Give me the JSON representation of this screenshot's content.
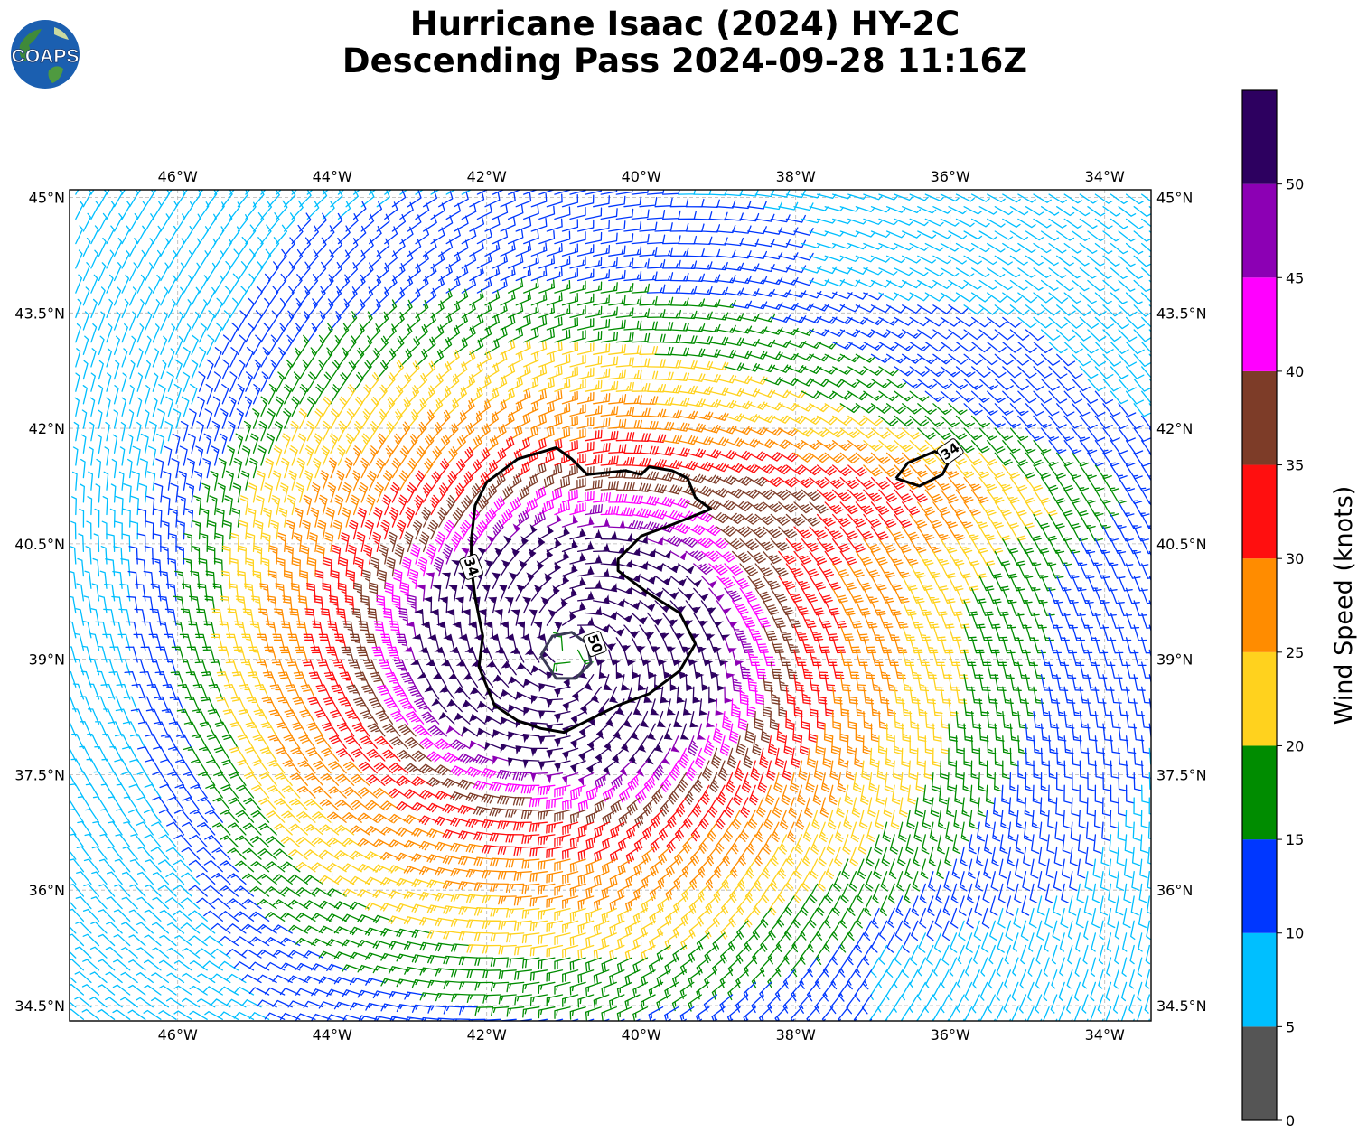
{
  "title": {
    "line1": "Hurricane Isaac (2024) HY-2C",
    "line2": "Descending Pass 2024-09-28 11:16Z"
  },
  "logo": {
    "text": "COAPS"
  },
  "map": {
    "lon_range": [
      -47.4,
      -33.4
    ],
    "lat_range": [
      34.3,
      45.1
    ],
    "lon_ticks": [
      {
        "value": -46,
        "label": "46°W"
      },
      {
        "value": -44,
        "label": "44°W"
      },
      {
        "value": -42,
        "label": "42°W"
      },
      {
        "value": -40,
        "label": "40°W"
      },
      {
        "value": -38,
        "label": "38°W"
      },
      {
        "value": -36,
        "label": "36°W"
      },
      {
        "value": -34,
        "label": "34°W"
      }
    ],
    "lat_ticks": [
      {
        "value": 45,
        "label": "45°N"
      },
      {
        "value": 43.5,
        "label": "43.5°N"
      },
      {
        "value": 42,
        "label": "42°N"
      },
      {
        "value": 40.5,
        "label": "40.5°N"
      },
      {
        "value": 39,
        "label": "39°N"
      },
      {
        "value": 37.5,
        "label": "37.5°N"
      },
      {
        "value": 36,
        "label": "36°N"
      },
      {
        "value": 34.5,
        "label": "34.5°N"
      }
    ],
    "gridlines": true,
    "storm_center": {
      "lon": -40.9,
      "lat": 39.1
    },
    "contours": [
      {
        "label": "34",
        "label_at": {
          "lon": -42.2,
          "lat": 40.2
        },
        "points": [
          [
            -42.2,
            40.55
          ],
          [
            -42.15,
            41.0
          ],
          [
            -42.0,
            41.3
          ],
          [
            -41.6,
            41.6
          ],
          [
            -41.1,
            41.75
          ],
          [
            -40.9,
            41.6
          ],
          [
            -40.7,
            41.4
          ],
          [
            -40.2,
            41.45
          ],
          [
            -40.0,
            41.4
          ],
          [
            -39.9,
            41.5
          ],
          [
            -39.6,
            41.45
          ],
          [
            -39.4,
            41.35
          ],
          [
            -39.3,
            41.1
          ],
          [
            -39.1,
            40.95
          ],
          [
            -39.6,
            40.75
          ],
          [
            -40.0,
            40.6
          ],
          [
            -40.3,
            40.3
          ],
          [
            -40.3,
            40.15
          ],
          [
            -40.1,
            40.0
          ],
          [
            -39.9,
            39.85
          ],
          [
            -39.5,
            39.6
          ],
          [
            -39.3,
            39.2
          ],
          [
            -39.5,
            38.85
          ],
          [
            -39.9,
            38.55
          ],
          [
            -40.3,
            38.4
          ],
          [
            -40.6,
            38.25
          ],
          [
            -41.0,
            38.05
          ],
          [
            -41.3,
            38.1
          ],
          [
            -41.6,
            38.2
          ],
          [
            -41.9,
            38.4
          ],
          [
            -42.1,
            38.9
          ],
          [
            -42.05,
            39.3
          ],
          [
            -42.15,
            39.8
          ],
          [
            -42.2,
            40.2
          ],
          [
            -42.2,
            40.55
          ]
        ]
      },
      {
        "label": "34",
        "label_at": {
          "lon": -36.0,
          "lat": 41.7
        },
        "points": [
          [
            -36.7,
            41.35
          ],
          [
            -36.55,
            41.55
          ],
          [
            -36.2,
            41.7
          ],
          [
            -36.0,
            41.6
          ],
          [
            -36.1,
            41.4
          ],
          [
            -36.4,
            41.25
          ],
          [
            -36.7,
            41.35
          ]
        ]
      },
      {
        "label": "50",
        "label_at": {
          "lon": -40.6,
          "lat": 39.2
        },
        "points": [
          [
            -41.3,
            39.05
          ],
          [
            -41.15,
            39.3
          ],
          [
            -40.9,
            39.35
          ],
          [
            -40.7,
            39.2
          ],
          [
            -40.65,
            38.95
          ],
          [
            -40.85,
            38.75
          ],
          [
            -41.1,
            38.75
          ],
          [
            -41.3,
            39.05
          ]
        ]
      }
    ]
  },
  "colorbar": {
    "label": "Wind Speed (knots)",
    "range": [
      0,
      55
    ],
    "ticks": [
      "0",
      "5",
      "10",
      "15",
      "20",
      "25",
      "30",
      "35",
      "40",
      "45",
      "50"
    ],
    "bins": [
      {
        "from": 0,
        "to": 5,
        "color": "#555555"
      },
      {
        "from": 5,
        "to": 10,
        "color": "#00bfff"
      },
      {
        "from": 10,
        "to": 15,
        "color": "#0037ff"
      },
      {
        "from": 15,
        "to": 20,
        "color": "#008c00"
      },
      {
        "from": 20,
        "to": 25,
        "color": "#ffd21e"
      },
      {
        "from": 25,
        "to": 30,
        "color": "#ff8c00"
      },
      {
        "from": 30,
        "to": 35,
        "color": "#ff0f0f"
      },
      {
        "from": 35,
        "to": 40,
        "color": "#7d3c28"
      },
      {
        "from": 40,
        "to": 45,
        "color": "#ff00ff"
      },
      {
        "from": 45,
        "to": 50,
        "color": "#8c00b4"
      },
      {
        "from": 50,
        "to": 55,
        "color": "#2d0060"
      }
    ]
  }
}
